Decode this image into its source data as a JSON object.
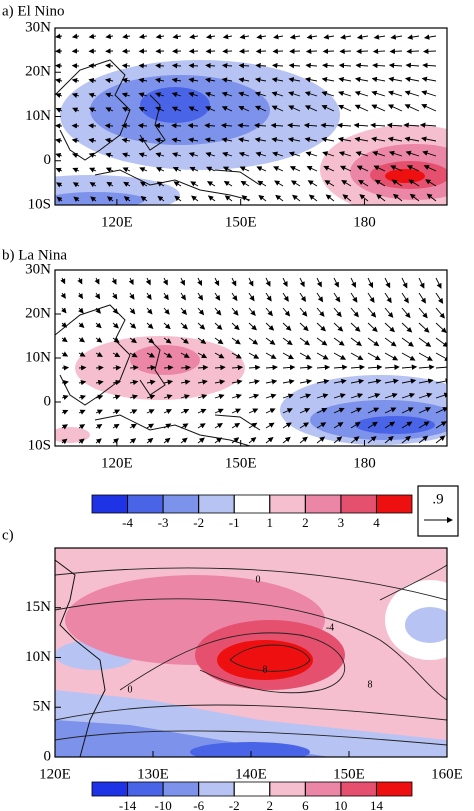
{
  "panels": [
    {
      "title": "a) El Nino",
      "xlim": [
        105,
        200
      ],
      "ylim": [
        -10,
        30
      ],
      "xticks": [
        {
          "value": 120,
          "label": "120E"
        },
        {
          "value": 150,
          "label": "150E"
        },
        180
      ],
      "yticks": [
        {
          "value": -10,
          "label": "10S"
        },
        0,
        {
          "value": 10,
          "label": "10N"
        },
        {
          "value": 20,
          "label": "20N"
        },
        {
          "value": 30,
          "label": "30N"
        }
      ]
    },
    {
      "title": "b) La Nina",
      "xlim": [
        105,
        200
      ],
      "ylim": [
        -10,
        30
      ],
      "xticks": [
        {
          "value": 120,
          "label": "120E"
        },
        {
          "value": 150,
          "label": "150E"
        },
        180
      ],
      "yticks": [
        {
          "value": -10,
          "label": "10S"
        },
        0,
        {
          "value": 10,
          "label": "10N"
        },
        {
          "value": 20,
          "label": "20N"
        },
        {
          "value": 30,
          "label": "30N"
        }
      ]
    },
    {
      "title": "c)",
      "xlim": [
        120,
        160
      ],
      "ylim": [
        0,
        21
      ],
      "xticks": [
        {
          "value": 120,
          "label": "120E"
        },
        {
          "value": 130,
          "label": "130E"
        },
        {
          "value": 140,
          "label": "140E"
        },
        {
          "value": 150,
          "label": "150E"
        },
        {
          "value": 160,
          "label": "160E"
        }
      ],
      "yticks": [
        0,
        {
          "value": 5,
          "label": "5N"
        },
        {
          "value": 10,
          "label": "10N"
        },
        {
          "value": 15,
          "label": "15N"
        }
      ],
      "contour_labels": [
        0,
        -4,
        8,
        8,
        0
      ]
    }
  ],
  "colorbars": [
    {
      "levels": [
        -4,
        -3,
        -2,
        -1,
        1,
        2,
        3,
        4
      ],
      "colors": [
        "#1e32e6",
        "#4a64e8",
        "#7d92ea",
        "#b7c3f2",
        "#ffffff",
        "#f6bfd0",
        "#ec86a6",
        "#e4506e",
        "#ee1010"
      ]
    },
    {
      "levels": [
        -14,
        -10,
        -6,
        -2,
        2,
        6,
        10,
        14
      ],
      "colors": [
        "#1e32e6",
        "#4a64e8",
        "#7d92ea",
        "#b7c3f2",
        "#ffffff",
        "#f6bfd0",
        "#ec86a6",
        "#e4506e",
        "#ee1010"
      ]
    }
  ],
  "reference_vector": {
    "label": ".9"
  }
}
